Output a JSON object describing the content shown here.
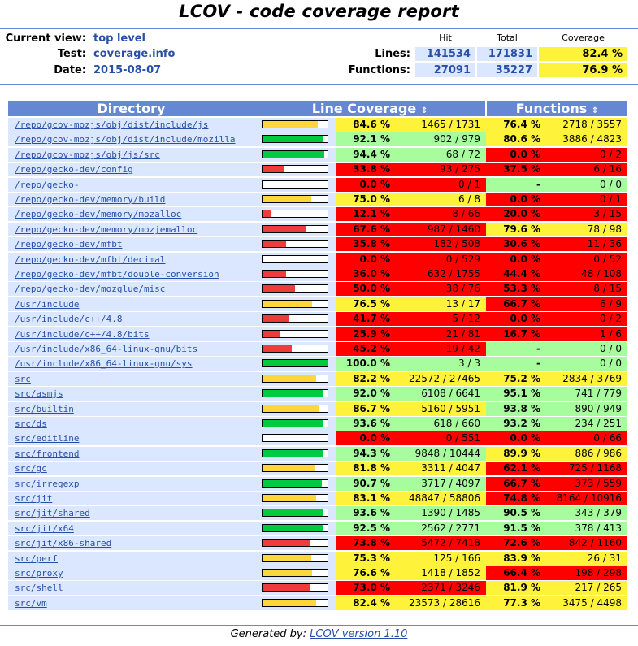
{
  "page_title": "LCOV - code coverage report",
  "header": {
    "current_view_label": "Current view:",
    "current_view_value": "top level",
    "test_label": "Test:",
    "test_value": "coverage.info",
    "date_label": "Date:",
    "date_value": "2015-08-07"
  },
  "summary": {
    "col_hit": "Hit",
    "col_total": "Total",
    "col_coverage": "Coverage",
    "lines_label": "Lines:",
    "lines_hit": "141534",
    "lines_total": "171831",
    "lines_coverage": "82.4 %",
    "functions_label": "Functions:",
    "functions_hit": "27091",
    "functions_total": "35227",
    "functions_coverage": "76.9 %"
  },
  "table_headers": {
    "directory": "Directory",
    "line_coverage": "Line Coverage",
    "functions": "Functions",
    "sort_icon": "⇕"
  },
  "colors": {
    "high": "#a7fc9d",
    "medium": "#fff23a",
    "low": "#ff0000",
    "header_blue": "#6688d4",
    "bar_high": "#00cb40",
    "bar_medium": "#ffd73a",
    "bar_low": "#ee3c3c"
  },
  "rows": [
    {
      "dir": "/repo/gcov-mozjs/obj/dist/include/js",
      "line_fraction": 0.846,
      "line_pct": "84.6 %",
      "line_hits": "1465 / 1731",
      "line_level": "med",
      "func_pct": "76.4 %",
      "func_hits": "2718 / 3557",
      "func_level": "med"
    },
    {
      "dir": "/repo/gcov-mozjs/obj/dist/include/mozilla",
      "line_fraction": 0.921,
      "line_pct": "92.1 %",
      "line_hits": "902 / 979",
      "line_level": "hi",
      "func_pct": "80.6 %",
      "func_hits": "3886 / 4823",
      "func_level": "med"
    },
    {
      "dir": "/repo/gcov-mozjs/obj/js/src",
      "line_fraction": 0.944,
      "line_pct": "94.4 %",
      "line_hits": "68 / 72",
      "line_level": "hi",
      "func_pct": "0.0 %",
      "func_hits": "0 / 2",
      "func_level": "lo"
    },
    {
      "dir": "/repo/gecko-dev/config",
      "line_fraction": 0.338,
      "line_pct": "33.8 %",
      "line_hits": "93 / 275",
      "line_level": "lo",
      "func_pct": "37.5 %",
      "func_hits": "6 / 16",
      "func_level": "lo"
    },
    {
      "dir": "/repo/gecko-dev/intl/icu/source/common/unicode",
      "line_fraction": 0.0,
      "line_pct": "0.0 %",
      "line_hits": "0 / 1",
      "line_level": "lo",
      "func_pct": "-",
      "func_hits": "0 / 0",
      "func_level": "hi"
    },
    {
      "dir": "/repo/gecko-dev/memory/build",
      "line_fraction": 0.75,
      "line_pct": "75.0 %",
      "line_hits": "6 / 8",
      "line_level": "med",
      "func_pct": "0.0 %",
      "func_hits": "0 / 1",
      "func_level": "lo"
    },
    {
      "dir": "/repo/gecko-dev/memory/mozalloc",
      "line_fraction": 0.121,
      "line_pct": "12.1 %",
      "line_hits": "8 / 66",
      "line_level": "lo",
      "func_pct": "20.0 %",
      "func_hits": "3 / 15",
      "func_level": "lo"
    },
    {
      "dir": "/repo/gecko-dev/memory/mozjemalloc",
      "line_fraction": 0.676,
      "line_pct": "67.6 %",
      "line_hits": "987 / 1460",
      "line_level": "lo",
      "func_pct": "79.6 %",
      "func_hits": "78 / 98",
      "func_level": "med"
    },
    {
      "dir": "/repo/gecko-dev/mfbt",
      "line_fraction": 0.358,
      "line_pct": "35.8 %",
      "line_hits": "182 / 508",
      "line_level": "lo",
      "func_pct": "30.6 %",
      "func_hits": "11 / 36",
      "func_level": "lo"
    },
    {
      "dir": "/repo/gecko-dev/mfbt/decimal",
      "line_fraction": 0.0,
      "line_pct": "0.0 %",
      "line_hits": "0 / 529",
      "line_level": "lo",
      "func_pct": "0.0 %",
      "func_hits": "0 / 52",
      "func_level": "lo"
    },
    {
      "dir": "/repo/gecko-dev/mfbt/double-conversion",
      "line_fraction": 0.36,
      "line_pct": "36.0 %",
      "line_hits": "632 / 1755",
      "line_level": "lo",
      "func_pct": "44.4 %",
      "func_hits": "48 / 108",
      "func_level": "lo"
    },
    {
      "dir": "/repo/gecko-dev/mozglue/misc",
      "line_fraction": 0.5,
      "line_pct": "50.0 %",
      "line_hits": "38 / 76",
      "line_level": "lo",
      "func_pct": "53.3 %",
      "func_hits": "8 / 15",
      "func_level": "lo"
    },
    {
      "dir": "/usr/include",
      "line_fraction": 0.765,
      "line_pct": "76.5 %",
      "line_hits": "13 / 17",
      "line_level": "med",
      "func_pct": "66.7 %",
      "func_hits": "6 / 9",
      "func_level": "lo"
    },
    {
      "dir": "/usr/include/c++/4.8",
      "line_fraction": 0.417,
      "line_pct": "41.7 %",
      "line_hits": "5 / 12",
      "line_level": "lo",
      "func_pct": "0.0 %",
      "func_hits": "0 / 2",
      "func_level": "lo"
    },
    {
      "dir": "/usr/include/c++/4.8/bits",
      "line_fraction": 0.259,
      "line_pct": "25.9 %",
      "line_hits": "21 / 81",
      "line_level": "lo",
      "func_pct": "16.7 %",
      "func_hits": "1 / 6",
      "func_level": "lo"
    },
    {
      "dir": "/usr/include/x86_64-linux-gnu/bits",
      "line_fraction": 0.452,
      "line_pct": "45.2 %",
      "line_hits": "19 / 42",
      "line_level": "lo",
      "func_pct": "-",
      "func_hits": "0 / 0",
      "func_level": "hi"
    },
    {
      "dir": "/usr/include/x86_64-linux-gnu/sys",
      "line_fraction": 1.0,
      "line_pct": "100.0 %",
      "line_hits": "3 / 3",
      "line_level": "hi",
      "func_pct": "-",
      "func_hits": "0 / 0",
      "func_level": "hi"
    },
    {
      "dir": "src",
      "line_fraction": 0.822,
      "line_pct": "82.2 %",
      "line_hits": "22572 / 27465",
      "line_level": "med",
      "func_pct": "75.2 %",
      "func_hits": "2834 / 3769",
      "func_level": "med"
    },
    {
      "dir": "src/asmjs",
      "line_fraction": 0.92,
      "line_pct": "92.0 %",
      "line_hits": "6108 / 6641",
      "line_level": "hi",
      "func_pct": "95.1 %",
      "func_hits": "741 / 779",
      "func_level": "hi"
    },
    {
      "dir": "src/builtin",
      "line_fraction": 0.867,
      "line_pct": "86.7 %",
      "line_hits": "5160 / 5951",
      "line_level": "med",
      "func_pct": "93.8 %",
      "func_hits": "890 / 949",
      "func_level": "hi"
    },
    {
      "dir": "src/ds",
      "line_fraction": 0.936,
      "line_pct": "93.6 %",
      "line_hits": "618 / 660",
      "line_level": "hi",
      "func_pct": "93.2 %",
      "func_hits": "234 / 251",
      "func_level": "hi"
    },
    {
      "dir": "src/editline",
      "line_fraction": 0.0,
      "line_pct": "0.0 %",
      "line_hits": "0 / 551",
      "line_level": "lo",
      "func_pct": "0.0 %",
      "func_hits": "0 / 66",
      "func_level": "lo"
    },
    {
      "dir": "src/frontend",
      "line_fraction": 0.943,
      "line_pct": "94.3 %",
      "line_hits": "9848 / 10444",
      "line_level": "hi",
      "func_pct": "89.9 %",
      "func_hits": "886 / 986",
      "func_level": "med"
    },
    {
      "dir": "src/gc",
      "line_fraction": 0.818,
      "line_pct": "81.8 %",
      "line_hits": "3311 / 4047",
      "line_level": "med",
      "func_pct": "62.1 %",
      "func_hits": "725 / 1168",
      "func_level": "lo"
    },
    {
      "dir": "src/irregexp",
      "line_fraction": 0.907,
      "line_pct": "90.7 %",
      "line_hits": "3717 / 4097",
      "line_level": "hi",
      "func_pct": "66.7 %",
      "func_hits": "373 / 559",
      "func_level": "lo"
    },
    {
      "dir": "src/jit",
      "line_fraction": 0.831,
      "line_pct": "83.1 %",
      "line_hits": "48847 / 58806",
      "line_level": "med",
      "func_pct": "74.8 %",
      "func_hits": "8164 / 10916",
      "func_level": "lo"
    },
    {
      "dir": "src/jit/shared",
      "line_fraction": 0.936,
      "line_pct": "93.6 %",
      "line_hits": "1390 / 1485",
      "line_level": "hi",
      "func_pct": "90.5 %",
      "func_hits": "343 / 379",
      "func_level": "hi"
    },
    {
      "dir": "src/jit/x64",
      "line_fraction": 0.925,
      "line_pct": "92.5 %",
      "line_hits": "2562 / 2771",
      "line_level": "hi",
      "func_pct": "91.5 %",
      "func_hits": "378 / 413",
      "func_level": "hi"
    },
    {
      "dir": "src/jit/x86-shared",
      "line_fraction": 0.738,
      "line_pct": "73.8 %",
      "line_hits": "5472 / 7418",
      "line_level": "lo",
      "func_pct": "72.6 %",
      "func_hits": "842 / 1160",
      "func_level": "lo"
    },
    {
      "dir": "src/perf",
      "line_fraction": 0.753,
      "line_pct": "75.3 %",
      "line_hits": "125 / 166",
      "line_level": "med",
      "func_pct": "83.9 %",
      "func_hits": "26 / 31",
      "func_level": "med"
    },
    {
      "dir": "src/proxy",
      "line_fraction": 0.766,
      "line_pct": "76.6 %",
      "line_hits": "1418 / 1852",
      "line_level": "med",
      "func_pct": "66.4 %",
      "func_hits": "198 / 298",
      "func_level": "lo"
    },
    {
      "dir": "src/shell",
      "line_fraction": 0.73,
      "line_pct": "73.0 %",
      "line_hits": "2371 / 3246",
      "line_level": "lo",
      "func_pct": "81.9 %",
      "func_hits": "217 / 265",
      "func_level": "med"
    },
    {
      "dir": "src/vm",
      "line_fraction": 0.824,
      "line_pct": "82.4 %",
      "line_hits": "23573 / 28616",
      "line_level": "med",
      "func_pct": "77.3 %",
      "func_hits": "3475 / 4498",
      "func_level": "med"
    }
  ],
  "footer": {
    "prefix": "Generated by: ",
    "link": "LCOV version 1.10"
  }
}
